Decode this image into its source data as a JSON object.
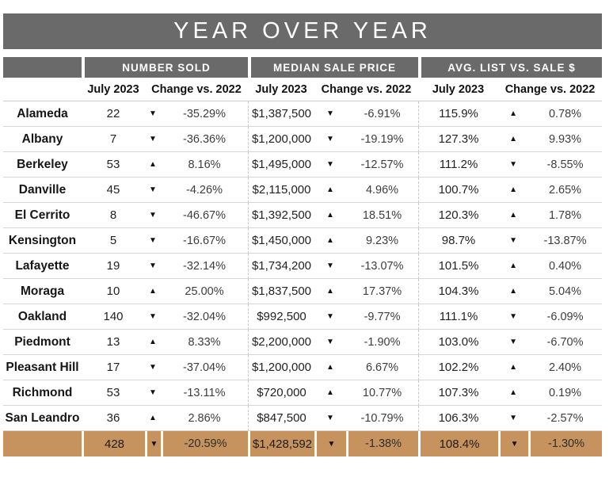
{
  "chart_data": {
    "type": "table",
    "title": "YEAR OVER YEAR",
    "column_groups": [
      "NUMBER SOLD",
      "MEDIAN SALE PRICE",
      "AVG. LIST VS. SALE $"
    ],
    "sub_headers": {
      "july": "July 2023",
      "change": "Change vs. 2022"
    },
    "rows": [
      {
        "city": "Alameda",
        "sold": "22",
        "sold_dir": "▼",
        "sold_chg": "-35.29%",
        "price": "$1,387,500",
        "price_dir": "▼",
        "price_chg": "-6.91%",
        "ratio": "115.9%",
        "ratio_dir": "▲",
        "ratio_chg": "0.78%"
      },
      {
        "city": "Albany",
        "sold": "7",
        "sold_dir": "▼",
        "sold_chg": "-36.36%",
        "price": "$1,200,000",
        "price_dir": "▼",
        "price_chg": "-19.19%",
        "ratio": "127.3%",
        "ratio_dir": "▲",
        "ratio_chg": "9.93%"
      },
      {
        "city": "Berkeley",
        "sold": "53",
        "sold_dir": "▲",
        "sold_chg": "8.16%",
        "price": "$1,495,000",
        "price_dir": "▼",
        "price_chg": "-12.57%",
        "ratio": "111.2%",
        "ratio_dir": "▼",
        "ratio_chg": "-8.55%"
      },
      {
        "city": "Danville",
        "sold": "45",
        "sold_dir": "▼",
        "sold_chg": "-4.26%",
        "price": "$2,115,000",
        "price_dir": "▲",
        "price_chg": "4.96%",
        "ratio": "100.7%",
        "ratio_dir": "▲",
        "ratio_chg": "2.65%"
      },
      {
        "city": "El Cerrito",
        "sold": "8",
        "sold_dir": "▼",
        "sold_chg": "-46.67%",
        "price": "$1,392,500",
        "price_dir": "▲",
        "price_chg": "18.51%",
        "ratio": "120.3%",
        "ratio_dir": "▲",
        "ratio_chg": "1.78%"
      },
      {
        "city": "Kensington",
        "sold": "5",
        "sold_dir": "▼",
        "sold_chg": "-16.67%",
        "price": "$1,450,000",
        "price_dir": "▲",
        "price_chg": "9.23%",
        "ratio": "98.7%",
        "ratio_dir": "▼",
        "ratio_chg": "-13.87%"
      },
      {
        "city": "Lafayette",
        "sold": "19",
        "sold_dir": "▼",
        "sold_chg": "-32.14%",
        "price": "$1,734,200",
        "price_dir": "▼",
        "price_chg": "-13.07%",
        "ratio": "101.5%",
        "ratio_dir": "▲",
        "ratio_chg": "0.40%"
      },
      {
        "city": "Moraga",
        "sold": "10",
        "sold_dir": "▲",
        "sold_chg": "25.00%",
        "price": "$1,837,500",
        "price_dir": "▲",
        "price_chg": "17.37%",
        "ratio": "104.3%",
        "ratio_dir": "▲",
        "ratio_chg": "5.04%"
      },
      {
        "city": "Oakland",
        "sold": "140",
        "sold_dir": "▼",
        "sold_chg": "-32.04%",
        "price": "$992,500",
        "price_dir": "▼",
        "price_chg": "-9.77%",
        "ratio": "111.1%",
        "ratio_dir": "▼",
        "ratio_chg": "-6.09%"
      },
      {
        "city": "Piedmont",
        "sold": "13",
        "sold_dir": "▲",
        "sold_chg": "8.33%",
        "price": "$2,200,000",
        "price_dir": "▼",
        "price_chg": "-1.90%",
        "ratio": "103.0%",
        "ratio_dir": "▼",
        "ratio_chg": "-6.70%"
      },
      {
        "city": "Pleasant Hill",
        "sold": "17",
        "sold_dir": "▼",
        "sold_chg": "-37.04%",
        "price": "$1,200,000",
        "price_dir": "▲",
        "price_chg": "6.67%",
        "ratio": "102.2%",
        "ratio_dir": "▲",
        "ratio_chg": "2.40%"
      },
      {
        "city": "Richmond",
        "sold": "53",
        "sold_dir": "▼",
        "sold_chg": "-13.11%",
        "price": "$720,000",
        "price_dir": "▲",
        "price_chg": "10.77%",
        "ratio": "107.3%",
        "ratio_dir": "▲",
        "ratio_chg": "0.19%"
      },
      {
        "city": "San Leandro",
        "sold": "36",
        "sold_dir": "▲",
        "sold_chg": "2.86%",
        "price": "$847,500",
        "price_dir": "▼",
        "price_chg": "-10.79%",
        "ratio": "106.3%",
        "ratio_dir": "▼",
        "ratio_chg": "-2.57%"
      }
    ],
    "totals": {
      "sold": "428",
      "sold_dir": "▼",
      "sold_chg": "-20.59%",
      "price": "$1,428,592",
      "price_dir": "▼",
      "price_chg": "-1.38%",
      "ratio": "108.4%",
      "ratio_dir": "▼",
      "ratio_chg": "-1.30%"
    }
  },
  "colors": {
    "header_gray": "#6a6a6a",
    "totals_tan": "#c6935f",
    "row_line": "#d6d6d6"
  }
}
